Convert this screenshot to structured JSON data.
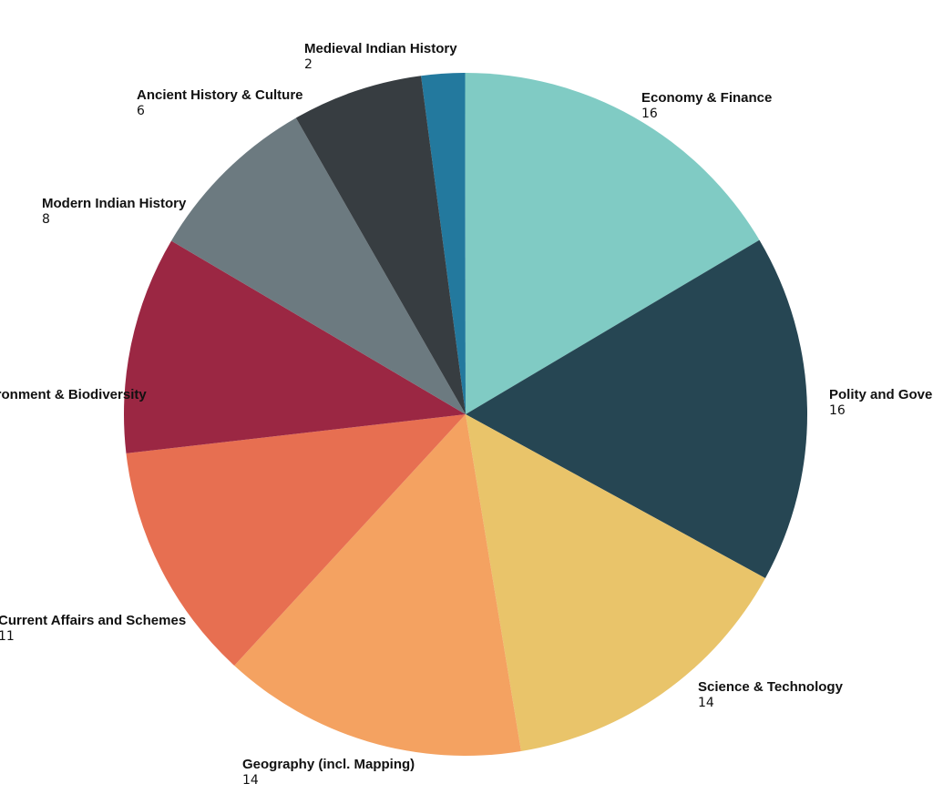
{
  "chart_data": {
    "type": "pie",
    "slices": [
      {
        "label": "Medieval Indian History",
        "value": 2,
        "color": "#23799E"
      },
      {
        "label": "Economy & Finance",
        "value": 16,
        "color": "#80CBC4"
      },
      {
        "label": "Polity and Governance",
        "value": 16,
        "color": "#264653"
      },
      {
        "label": "Science & Technology",
        "value": 14,
        "color": "#E9C46A"
      },
      {
        "label": "Geography (incl. Mapping)",
        "value": 14,
        "color": "#F4A261"
      },
      {
        "label": "Current Affairs and Schemes",
        "value": 11,
        "color": "#E76F51"
      },
      {
        "label": "Environment & Biodiversity",
        "value": 10,
        "color": "#9B2743"
      },
      {
        "label": "Modern Indian History",
        "value": 8,
        "color": "#6C7A80"
      },
      {
        "label": "Ancient History & Culture",
        "value": 6,
        "color": "#373D41"
      }
    ],
    "legend": "none"
  }
}
